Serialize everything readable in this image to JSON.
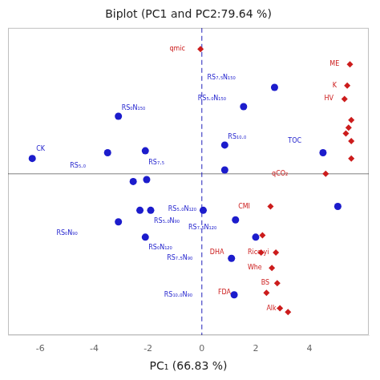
{
  "chart_data": {
    "type": "scatter",
    "title": "Biplot (PC1 and PC2:79.64 %)",
    "xlabel": "PC₁ (66.83 %)",
    "xlim": [
      -7.2,
      6.2
    ],
    "ylim": [
      -4.2,
      3.8
    ],
    "xticks": [
      -6,
      -4,
      -2,
      0,
      2,
      4
    ],
    "tick_labels": "x",
    "grid": false,
    "reference_lines": [
      {
        "axis": "y",
        "value": 0,
        "color": "gray",
        "line_style": "solid"
      },
      {
        "axis": "x",
        "value": 0,
        "color": "#2222bb",
        "line_style": "dashed"
      }
    ],
    "series": [
      {
        "color": "#1c1ccc",
        "marker": "circle",
        "x": [
          -6.3,
          -3.5,
          -2.1,
          -3.1,
          0.85,
          0.85,
          2.7,
          1.55,
          4.5,
          -2.55,
          -2.05,
          -1.9,
          -2.3,
          -3.1,
          -2.1,
          0.05,
          1.25,
          2.0,
          1.1,
          1.2,
          5.05
        ],
        "y": [
          0.4,
          0.55,
          0.6,
          1.5,
          0.75,
          0.1,
          2.25,
          1.75,
          0.55,
          -0.2,
          -0.15,
          -0.95,
          -0.95,
          -1.25,
          -1.65,
          -0.95,
          -1.2,
          -1.65,
          -2.2,
          -3.15,
          -0.85
        ],
        "labels": [
          "CK",
          "RS₅.₀",
          "RS₇.₅",
          "RS₀N₁₅₀",
          "RS₁₀.₀",
          null,
          "RS₇.₅N₁₅₀",
          "RS₅.₀N₁₅₀",
          "TOC",
          null,
          null,
          "RS₅.₀N₉₀",
          null,
          "RS₀N₉₀",
          "RS₀N₁₂₀",
          null,
          "RS₅.₀N₁₂₀",
          "RS₇.₅N₁₂₀",
          "RS₇.₅N₉₀",
          "RS₁₀.₀N₉₀",
          null
        ]
      },
      {
        "color": "#cc1c1c",
        "marker": "diamond",
        "x": [
          -0.05,
          5.5,
          5.4,
          5.3,
          5.55,
          5.45,
          5.35,
          5.55,
          5.55,
          4.6,
          2.55,
          2.25,
          2.75,
          2.6,
          2.2,
          2.8,
          2.4,
          2.9,
          3.2
        ],
        "y": [
          3.25,
          2.85,
          2.3,
          1.95,
          1.4,
          1.2,
          1.05,
          0.85,
          0.4,
          0.0,
          -0.85,
          -1.6,
          -2.05,
          -2.45,
          -2.05,
          -2.85,
          -3.1,
          -3.5,
          -3.6
        ],
        "labels": [
          "qmic",
          "ME",
          "K",
          "HV",
          null,
          null,
          null,
          null,
          null,
          "qCO₂",
          "CMI",
          null,
          "Rice yi",
          "Whe",
          "DHA",
          "BS",
          "FDA",
          "Alk-",
          null
        ]
      }
    ]
  }
}
